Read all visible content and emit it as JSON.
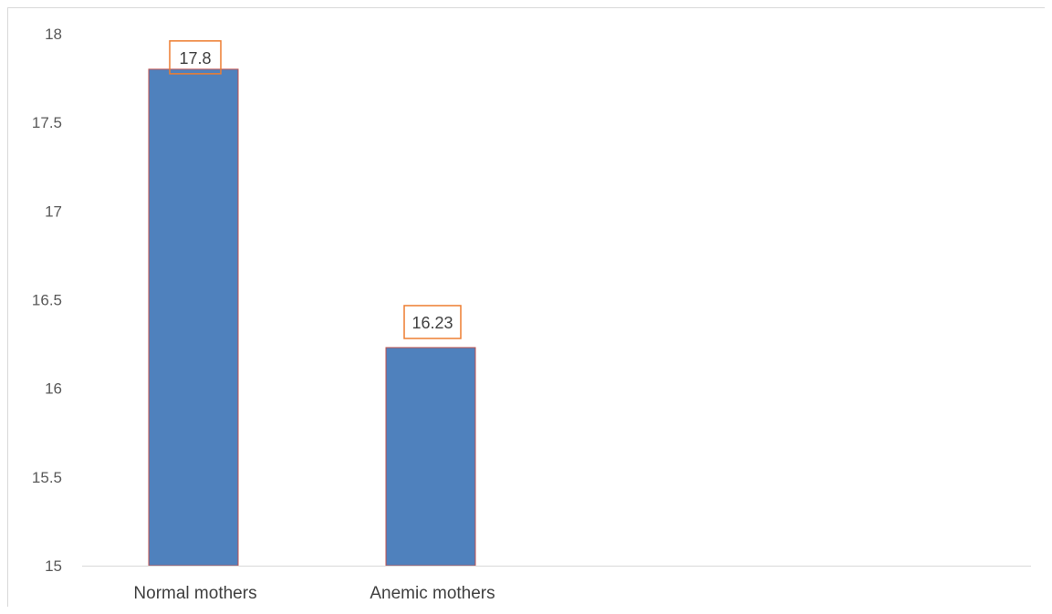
{
  "chart_data": {
    "type": "bar",
    "categories": [
      "Normal mothers",
      "Anemic mothers"
    ],
    "values": [
      17.8,
      16.23
    ],
    "data_labels": [
      "17.8",
      "16.23"
    ],
    "title": "",
    "xlabel": "",
    "ylabel": "",
    "ylim": [
      15,
      18
    ],
    "yticks": [
      "15",
      "15.5",
      "16",
      "16.5",
      "17",
      "17.5",
      "18"
    ],
    "grid": false,
    "legend": "none",
    "colors": {
      "bar_fill": "#4f81bd",
      "bar_edge": "#c0504d",
      "label_box": "#ed7d31",
      "axis": "#d9d9d9"
    }
  }
}
